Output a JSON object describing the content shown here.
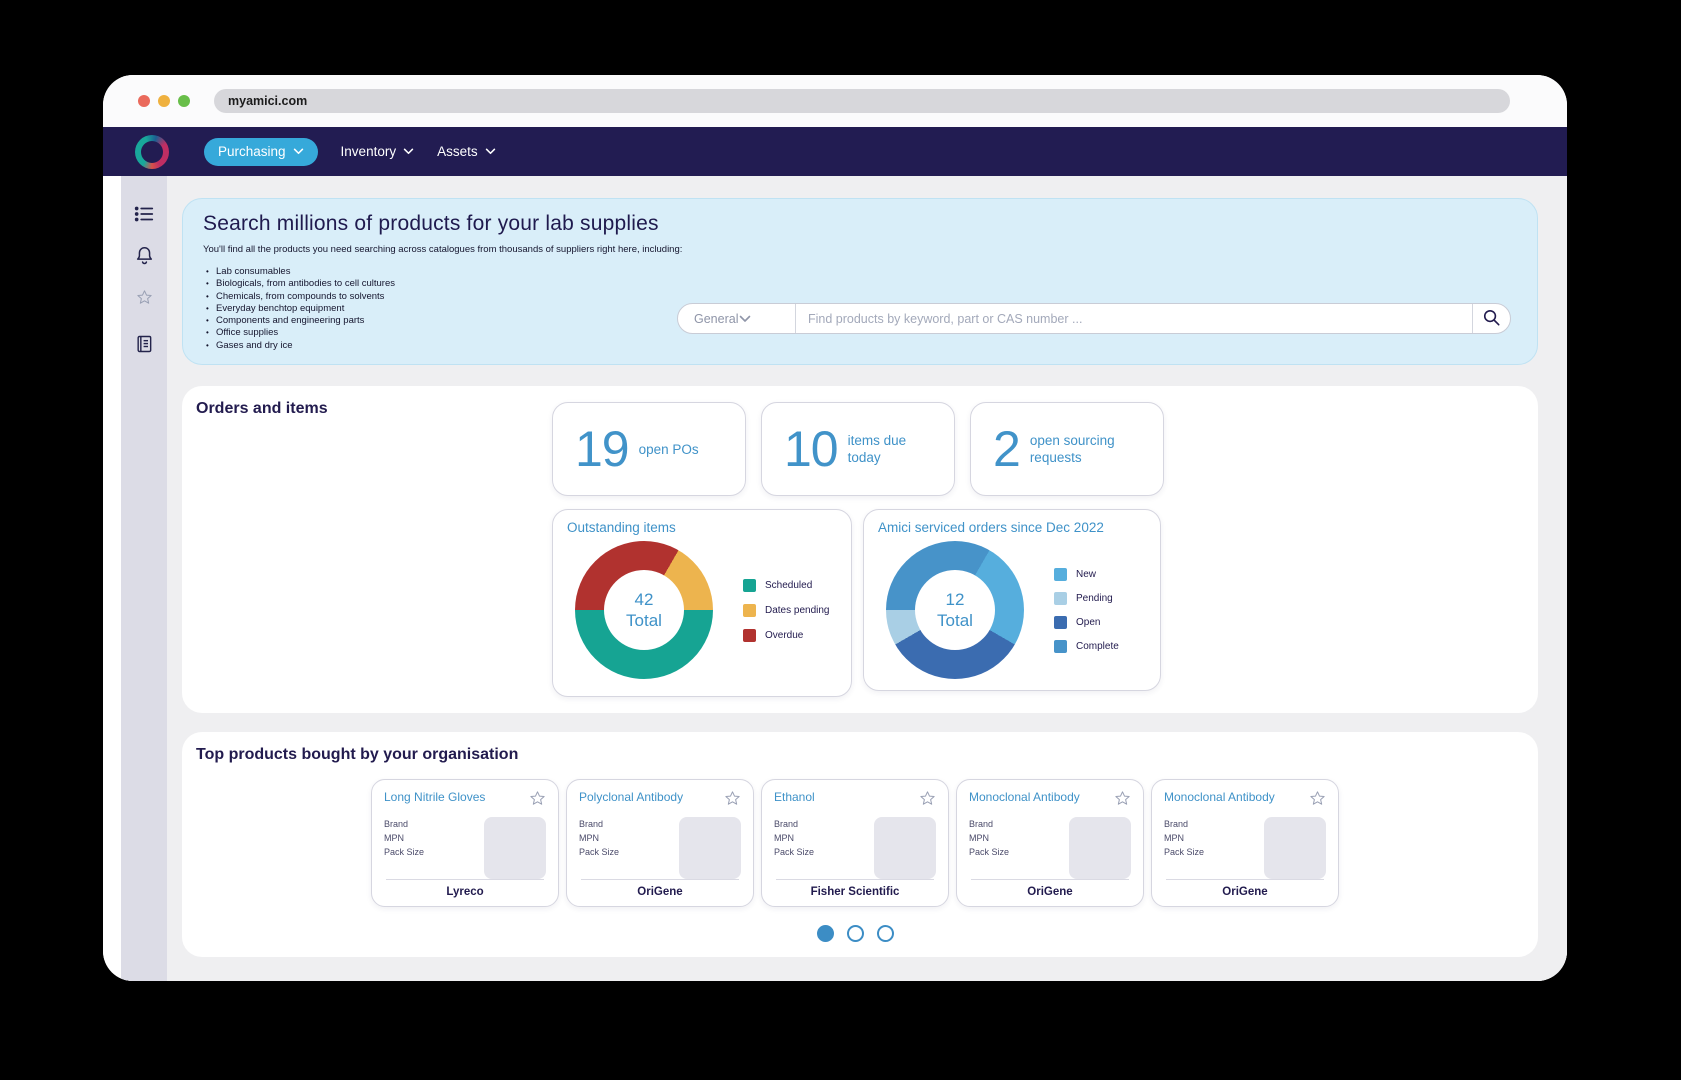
{
  "browser": {
    "url": "myamici.com"
  },
  "nav": {
    "items": [
      {
        "label": "Purchasing",
        "active": true
      },
      {
        "label": "Inventory",
        "active": false
      },
      {
        "label": "Assets",
        "active": false
      }
    ]
  },
  "sidebar": {
    "icons": [
      "list-icon",
      "bell-icon",
      "star-icon",
      "journal-icon"
    ]
  },
  "hero": {
    "title": "Search millions of products for your lab supplies",
    "intro": "You'll find all the products you need searching across catalogues from thousands of suppliers right here, including:",
    "bullets": [
      "Lab consumables",
      "Biologicals, from antibodies to cell cultures",
      "Chemicals, from compounds to solvents",
      "Everyday benchtop equipment",
      "Components and engineering parts",
      "Office supplies",
      "Gases and dry ice"
    ],
    "search": {
      "category": "General",
      "placeholder": "Find products by keyword, part or CAS number ..."
    }
  },
  "orders_section": {
    "title": "Orders and items",
    "stats": [
      {
        "value": 19,
        "label": "open POs"
      },
      {
        "value": 10,
        "label": "items due today"
      },
      {
        "value": 2,
        "label": "open sourcing requests"
      }
    ]
  },
  "chart_data": [
    {
      "type": "donut",
      "title": "Outstanding items",
      "center_value": "42",
      "center_label": "Total",
      "total": 42,
      "legend_position": "right",
      "legend": [
        {
          "label": "Scheduled",
          "color": "#16A493",
          "value": 21
        },
        {
          "label": "Dates pending",
          "color": "#EDB44E",
          "value": 7
        },
        {
          "label": "Overdue",
          "color": "#B1322F",
          "value": 14
        }
      ],
      "draw_order": [
        1,
        0,
        2
      ],
      "rotation_deg": 30
    },
    {
      "type": "donut",
      "title": "Amici serviced orders since Dec 2022",
      "center_value": "12",
      "center_label": "Total",
      "total": 12,
      "legend_position": "right",
      "legend": [
        {
          "label": "New",
          "color": "#56AEDD",
          "value": 3
        },
        {
          "label": "Pending",
          "color": "#A9CFE5",
          "value": 1
        },
        {
          "label": "Open",
          "color": "#3B6CB0",
          "value": 4
        },
        {
          "label": "Complete",
          "color": "#4793C9",
          "value": 4
        }
      ],
      "draw_order": [
        0,
        2,
        1,
        3
      ],
      "rotation_deg": 30
    }
  ],
  "top_products": {
    "title": "Top products bought by your organisation",
    "field_labels": [
      "Brand",
      "MPN",
      "Pack Size"
    ],
    "cards": [
      {
        "name": "Long Nitrile Gloves",
        "vendor": "Lyreco"
      },
      {
        "name": "Polyclonal Antibody",
        "vendor": "OriGene"
      },
      {
        "name": "Ethanol",
        "vendor": "Fisher Scientific"
      },
      {
        "name": "Monoclonal Antibody",
        "vendor": "OriGene"
      },
      {
        "name": "Monoclonal Antibody",
        "vendor": "OriGene"
      }
    ],
    "pagination": {
      "count": 3,
      "active": 0
    }
  },
  "colors": {
    "accent_blue": "#3F92C8",
    "navy": "#221B4E",
    "nav_bg": "#221C52",
    "active_pill": "#36A9DA",
    "hero_bg": "#D9EEF9",
    "sidebar_bg": "#DCDCE6"
  }
}
